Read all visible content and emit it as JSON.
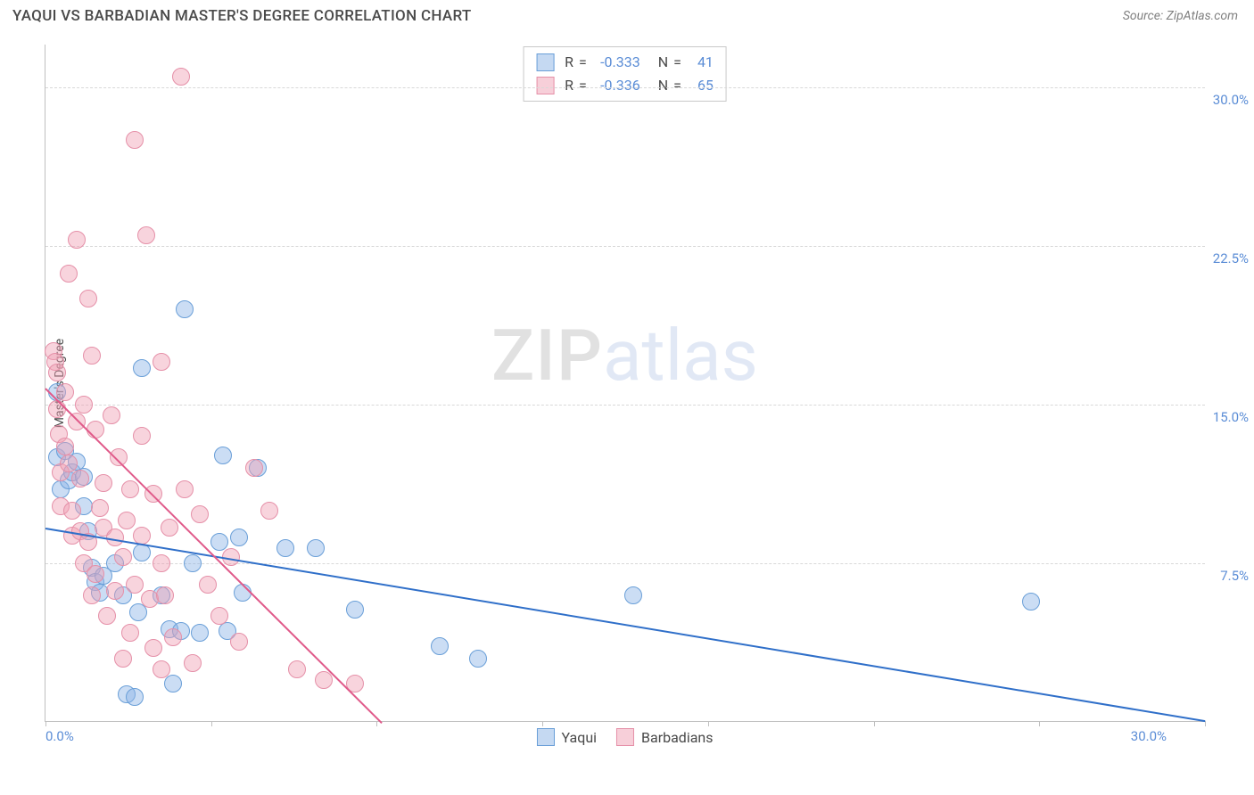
{
  "header": {
    "title": "YAQUI VS BARBADIAN MASTER'S DEGREE CORRELATION CHART",
    "source": "Source: ZipAtlas.com"
  },
  "watermark": {
    "zip": "ZIP",
    "atlas": "atlas"
  },
  "chart": {
    "type": "scatter",
    "ylabel": "Master's Degree",
    "background_color": "#ffffff",
    "grid_color": "#d8d8d8",
    "axis_color": "#c0c0c0",
    "tick_label_color": "#5b8dd6",
    "axis_label_color": "#4a4a4a",
    "label_fontsize": 14,
    "tick_fontsize": 15,
    "xlim": [
      0,
      30
    ],
    "ylim": [
      0,
      32
    ],
    "xticks": [
      0,
      4.29,
      8.57,
      12.86,
      17.14,
      21.43,
      25.71,
      30
    ],
    "ytick_labels": [
      {
        "value": 7.5,
        "text": "7.5%"
      },
      {
        "value": 15.0,
        "text": "15.0%"
      },
      {
        "value": 22.5,
        "text": "22.5%"
      },
      {
        "value": 30.0,
        "text": "30.0%"
      }
    ],
    "xlabel_min": "0.0%",
    "xlabel_max": "30.0%",
    "marker_radius": 10,
    "marker_border_width": 1.5,
    "series": [
      {
        "name": "Yaqui",
        "fill_color": "rgba(140,180,230,0.45)",
        "border_color": "#6a9fd8",
        "trendline_color": "#2f6fc9",
        "trendline": {
          "x1": 0,
          "y1": 9.2,
          "x2": 30,
          "y2": 0.1
        },
        "points": [
          [
            0.3,
            12.5
          ],
          [
            0.3,
            15.6
          ],
          [
            0.4,
            11.0
          ],
          [
            0.5,
            12.8
          ],
          [
            0.6,
            11.4
          ],
          [
            0.7,
            11.8
          ],
          [
            0.8,
            12.3
          ],
          [
            1.0,
            11.6
          ],
          [
            1.0,
            10.2
          ],
          [
            1.1,
            9.0
          ],
          [
            1.2,
            7.3
          ],
          [
            1.3,
            6.6
          ],
          [
            1.4,
            6.1
          ],
          [
            1.5,
            6.9
          ],
          [
            1.8,
            7.5
          ],
          [
            2.0,
            6.0
          ],
          [
            2.1,
            1.3
          ],
          [
            2.3,
            1.2
          ],
          [
            2.4,
            5.2
          ],
          [
            2.5,
            8.0
          ],
          [
            2.5,
            16.7
          ],
          [
            3.0,
            6.0
          ],
          [
            3.2,
            4.4
          ],
          [
            3.3,
            1.8
          ],
          [
            3.5,
            4.3
          ],
          [
            3.6,
            19.5
          ],
          [
            3.8,
            7.5
          ],
          [
            4.0,
            4.2
          ],
          [
            4.5,
            8.5
          ],
          [
            4.6,
            12.6
          ],
          [
            4.7,
            4.3
          ],
          [
            5.0,
            8.7
          ],
          [
            5.1,
            6.1
          ],
          [
            5.5,
            12.0
          ],
          [
            6.2,
            8.2
          ],
          [
            7.0,
            8.2
          ],
          [
            8.0,
            5.3
          ],
          [
            10.2,
            3.6
          ],
          [
            11.2,
            3.0
          ],
          [
            15.2,
            6.0
          ],
          [
            25.5,
            5.7
          ]
        ]
      },
      {
        "name": "Barbadians",
        "fill_color": "rgba(240,160,180,0.45)",
        "border_color": "#e590a8",
        "trendline_color": "#e05a8a",
        "trendline": {
          "x1": 0,
          "y1": 15.8,
          "x2": 8.7,
          "y2": 0
        },
        "points": [
          [
            0.2,
            17.5
          ],
          [
            0.25,
            17.0
          ],
          [
            0.3,
            16.5
          ],
          [
            0.3,
            14.8
          ],
          [
            0.35,
            13.6
          ],
          [
            0.4,
            11.8
          ],
          [
            0.4,
            10.2
          ],
          [
            0.5,
            15.6
          ],
          [
            0.5,
            13.0
          ],
          [
            0.6,
            21.2
          ],
          [
            0.6,
            12.2
          ],
          [
            0.7,
            10.0
          ],
          [
            0.7,
            8.8
          ],
          [
            0.8,
            14.2
          ],
          [
            0.8,
            22.8
          ],
          [
            0.9,
            11.5
          ],
          [
            0.9,
            9.0
          ],
          [
            1.0,
            15.0
          ],
          [
            1.0,
            7.5
          ],
          [
            1.1,
            20.0
          ],
          [
            1.1,
            8.5
          ],
          [
            1.2,
            17.3
          ],
          [
            1.2,
            6.0
          ],
          [
            1.3,
            13.8
          ],
          [
            1.3,
            7.0
          ],
          [
            1.4,
            10.1
          ],
          [
            1.5,
            9.2
          ],
          [
            1.5,
            11.3
          ],
          [
            1.6,
            5.0
          ],
          [
            1.7,
            14.5
          ],
          [
            1.8,
            8.7
          ],
          [
            1.8,
            6.2
          ],
          [
            1.9,
            12.5
          ],
          [
            2.0,
            7.8
          ],
          [
            2.0,
            3.0
          ],
          [
            2.1,
            9.5
          ],
          [
            2.2,
            11.0
          ],
          [
            2.2,
            4.2
          ],
          [
            2.3,
            27.5
          ],
          [
            2.3,
            6.5
          ],
          [
            2.5,
            8.8
          ],
          [
            2.5,
            13.5
          ],
          [
            2.6,
            23.0
          ],
          [
            2.7,
            5.8
          ],
          [
            2.8,
            10.8
          ],
          [
            2.8,
            3.5
          ],
          [
            3.0,
            17.0
          ],
          [
            3.0,
            7.5
          ],
          [
            3.0,
            2.5
          ],
          [
            3.1,
            6.0
          ],
          [
            3.2,
            9.2
          ],
          [
            3.3,
            4.0
          ],
          [
            3.5,
            30.5
          ],
          [
            3.6,
            11.0
          ],
          [
            3.8,
            2.8
          ],
          [
            4.0,
            9.8
          ],
          [
            4.2,
            6.5
          ],
          [
            4.5,
            5.0
          ],
          [
            4.8,
            7.8
          ],
          [
            5.0,
            3.8
          ],
          [
            5.4,
            12.0
          ],
          [
            5.8,
            10.0
          ],
          [
            6.5,
            2.5
          ],
          [
            7.2,
            2.0
          ],
          [
            8.0,
            1.8
          ]
        ]
      }
    ],
    "legend_top": {
      "rows": [
        {
          "swatch_fill": "rgba(140,180,230,0.5)",
          "swatch_border": "#6a9fd8",
          "r_label": "R",
          "r_value": "-0.333",
          "n_label": "N",
          "n_value": "41"
        },
        {
          "swatch_fill": "rgba(240,160,180,0.5)",
          "swatch_border": "#e590a8",
          "r_label": "R",
          "r_value": "-0.336",
          "n_label": "N",
          "n_value": "65"
        }
      ]
    },
    "legend_bottom": {
      "items": [
        {
          "swatch_fill": "rgba(140,180,230,0.5)",
          "swatch_border": "#6a9fd8",
          "label": "Yaqui"
        },
        {
          "swatch_fill": "rgba(240,160,180,0.5)",
          "swatch_border": "#e590a8",
          "label": "Barbadians"
        }
      ]
    }
  }
}
